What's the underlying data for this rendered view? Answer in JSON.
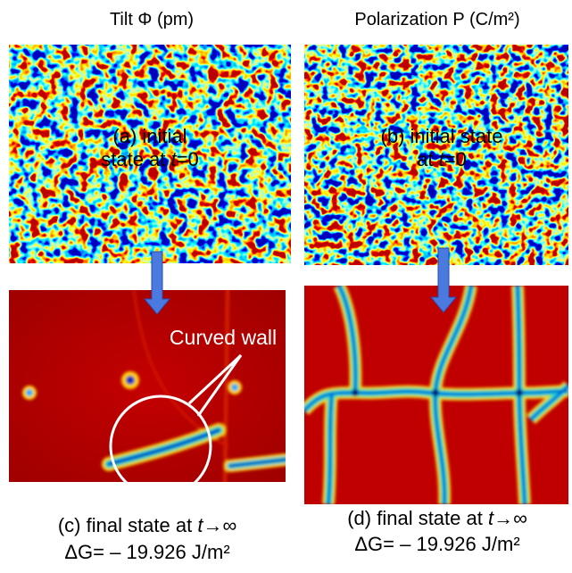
{
  "titles": [
    "Tilt Φ (pm)",
    "Polarization P (C/m²)"
  ],
  "panels": [
    {
      "lines": [
        [
          "(a) initial"
        ],
        [
          "state at ",
          "t",
          "=0"
        ]
      ]
    },
    {
      "lines": [
        [
          "(b) initial state"
        ],
        [
          "at ",
          "t",
          "=0"
        ]
      ]
    },
    {
      "lines": [
        [
          "(c) final state at ",
          "t",
          "→∞"
        ],
        [
          "ΔG= – 19.926 J/m²"
        ]
      ]
    },
    {
      "lines": [
        [
          "(d) final state at ",
          "t",
          "→∞"
        ],
        [
          "ΔG= – 19.926 J/m²"
        ]
      ]
    }
  ],
  "annotation": "Curved wall"
}
